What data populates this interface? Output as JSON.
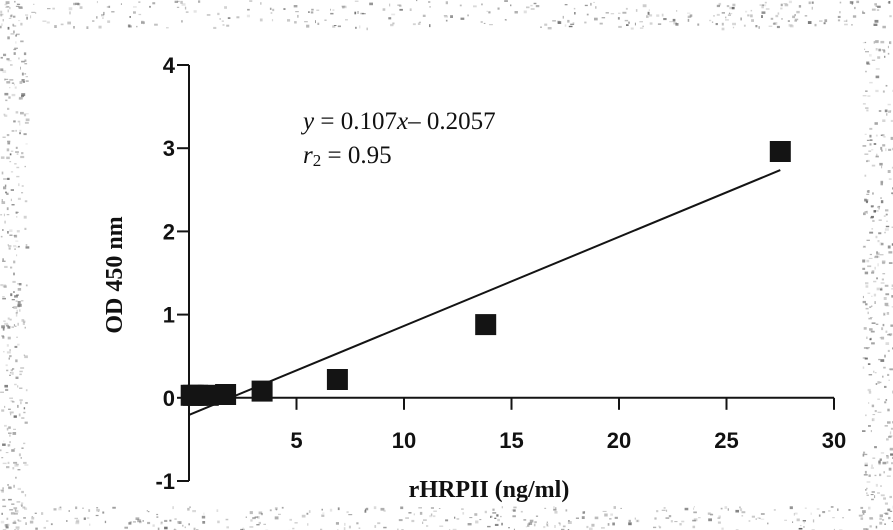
{
  "chart_data": {
    "type": "scatter",
    "xlabel": "rHRPII (ng/ml)",
    "ylabel": "OD 450 nm",
    "xlim": [
      0,
      30
    ],
    "ylim": [
      -1,
      4
    ],
    "x_ticks": [
      5,
      10,
      15,
      20,
      25,
      30
    ],
    "x_tick_labels": [
      "5",
      "10",
      "15",
      "20",
      "25",
      "30"
    ],
    "y_ticks": [
      -1,
      0,
      1,
      2,
      3,
      4
    ],
    "y_tick_labels": [
      "-1",
      "0",
      "1",
      "2",
      "3",
      "4"
    ],
    "points": [
      {
        "x": 0.1,
        "y": 0.03
      },
      {
        "x": 0.2,
        "y": 0.03
      },
      {
        "x": 0.4,
        "y": 0.03
      },
      {
        "x": 0.9,
        "y": 0.03
      },
      {
        "x": 1.7,
        "y": 0.04
      },
      {
        "x": 3.4,
        "y": 0.08
      },
      {
        "x": 6.9,
        "y": 0.22
      },
      {
        "x": 13.8,
        "y": 0.88
      },
      {
        "x": 27.5,
        "y": 2.96
      }
    ],
    "fit": {
      "slope": 0.107,
      "intercept": -0.2057,
      "x_range": [
        0,
        27.5
      ]
    },
    "grid": false,
    "legend": "none",
    "annotations": {
      "equation": {
        "var_y": "y",
        "eq": " = 0.107",
        "var_x": "x",
        "rest": "– 0.2057"
      },
      "r2": {
        "var": "r",
        "sub": "2",
        "rest": " = 0.95"
      }
    },
    "colors": {
      "marker": "#141414",
      "line": "#141414",
      "axis": "#141414"
    }
  }
}
